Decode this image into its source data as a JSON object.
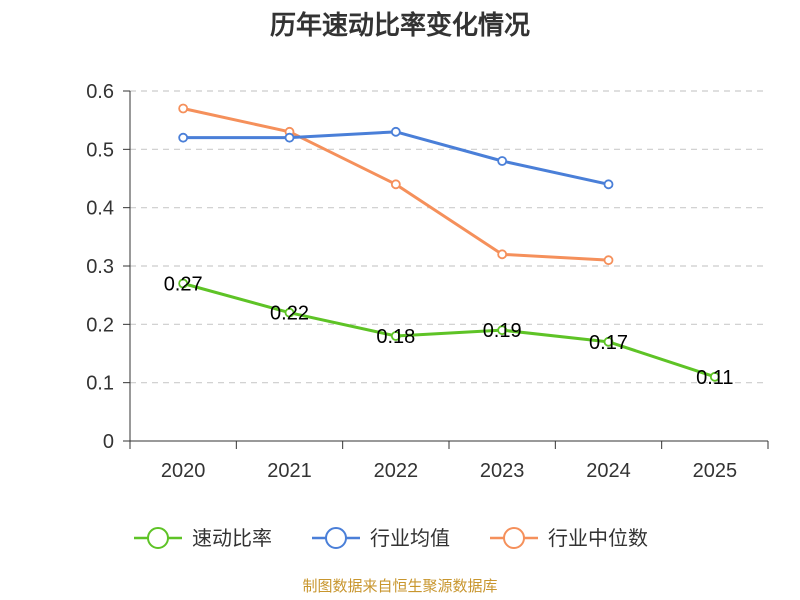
{
  "chart_data": {
    "type": "line",
    "title": "历年速动比率变化情况",
    "categories": [
      "2020",
      "2021",
      "2022",
      "2023",
      "2024",
      "2025"
    ],
    "y_ticks": [
      "0",
      "0.1",
      "0.2",
      "0.3",
      "0.4",
      "0.5",
      "0.6"
    ],
    "ylim": [
      0,
      0.6
    ],
    "grid": true,
    "legend_position": "bottom",
    "series": [
      {
        "name": "速动比率",
        "color": "#5ec326",
        "values": [
          0.27,
          0.22,
          0.18,
          0.19,
          0.17,
          0.11
        ],
        "labels": [
          "0.27",
          "0.22",
          "0.18",
          "0.19",
          "0.17",
          "0.11"
        ]
      },
      {
        "name": "行业均值",
        "color": "#4a7fd8",
        "values": [
          0.52,
          0.52,
          0.53,
          0.48,
          0.44,
          null
        ]
      },
      {
        "name": "行业中位数",
        "color": "#f5905b",
        "values": [
          0.57,
          0.53,
          0.44,
          0.32,
          0.31,
          null
        ]
      }
    ]
  },
  "source_text": "制图数据来自恒生聚源数据库"
}
